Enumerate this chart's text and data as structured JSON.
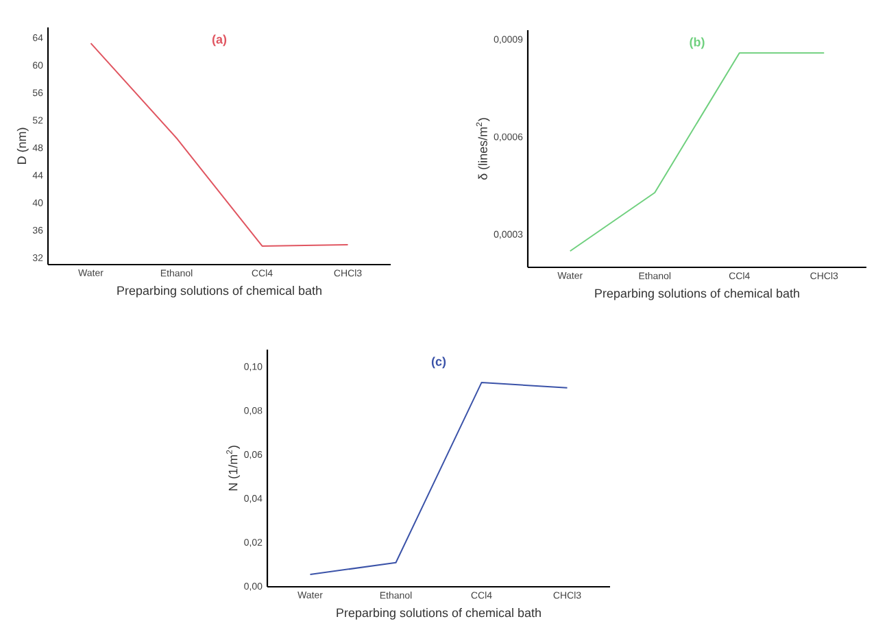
{
  "chart_data": [
    {
      "type": "line",
      "title": "(a)",
      "xlabel": "Preparbing solutions of chemical bath",
      "ylabel": "D (nm)",
      "categories": [
        "Water",
        "Ethanol",
        "CCl4",
        "CHCl3"
      ],
      "series": [
        {
          "color": "#e05560",
          "values": [
            63.2,
            49.4,
            33.7,
            33.9
          ]
        }
      ],
      "ylim": [
        31,
        65.5
      ],
      "yticks": [
        32,
        36,
        40,
        44,
        48,
        52,
        56,
        60,
        64
      ]
    },
    {
      "type": "line",
      "title": "(b)",
      "xlabel": "Preparbing solutions of chemical bath",
      "ylabel": "δ (lines/m$^{2}$)",
      "categories": [
        "Water",
        "Ethanol",
        "CCl4",
        "CHCl3"
      ],
      "series": [
        {
          "color": "#6fd07e",
          "values": [
            0.00025,
            0.00043,
            0.00086,
            0.00086
          ]
        }
      ],
      "ylim": [
        0.0002,
        0.00093
      ],
      "yticks": [
        {
          "value": 0.0003,
          "label": "0,0003"
        },
        {
          "value": 0.0006,
          "label": "0,0006"
        },
        {
          "value": 0.0009,
          "label": "0,0009"
        }
      ]
    },
    {
      "type": "line",
      "title": "(c)",
      "xlabel": "Preparbing solutions of chemical bath",
      "ylabel": "N (1/m$^{2}$)",
      "categories": [
        "Water",
        "Ethanol",
        "CCl4",
        "CHCl3"
      ],
      "series": [
        {
          "color": "#3a52a8",
          "values": [
            0.0056,
            0.011,
            0.093,
            0.0906
          ]
        }
      ],
      "ylim": [
        0,
        0.108
      ],
      "yticks": [
        {
          "value": 0,
          "label": "0,00"
        },
        {
          "value": 0.02,
          "label": "0,02"
        },
        {
          "value": 0.04,
          "label": "0,04"
        },
        {
          "value": 0.06,
          "label": "0,06"
        },
        {
          "value": 0.08,
          "label": "0,08"
        },
        {
          "value": 0.1,
          "label": "0,10"
        }
      ]
    }
  ]
}
